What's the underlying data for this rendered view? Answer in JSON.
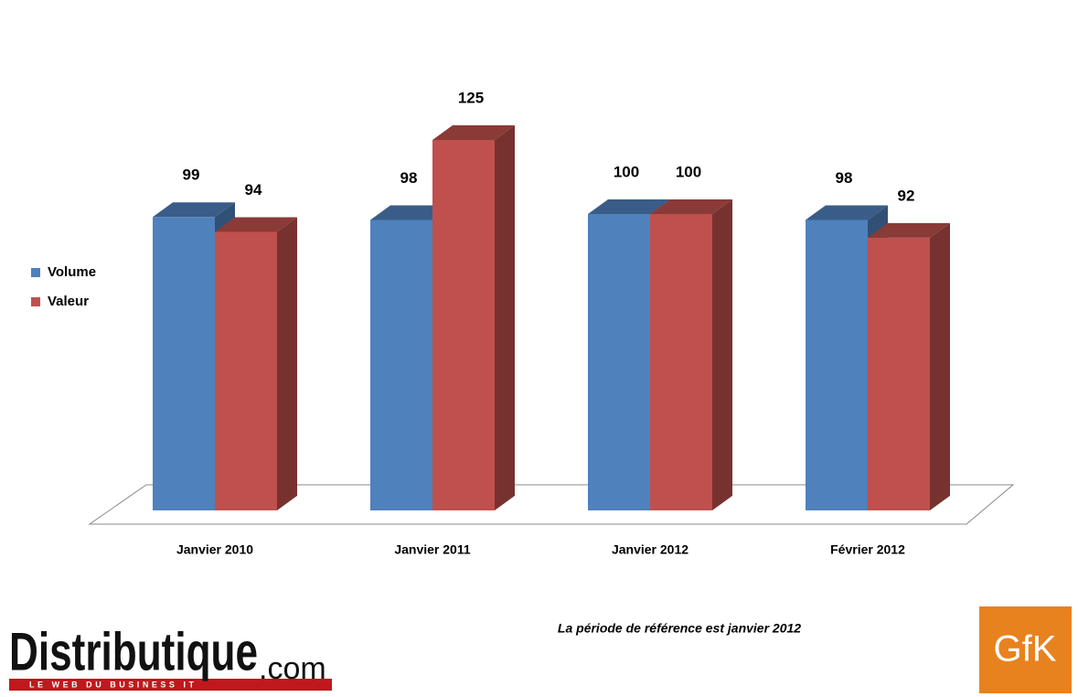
{
  "chart_data": {
    "type": "bar3d",
    "categories": [
      "Janvier 2010",
      "Janvier 2011",
      "Janvier 2012",
      "Février 2012"
    ],
    "series": [
      {
        "name": "Volume",
        "color": "#4f81bd",
        "values": [
          99,
          98,
          100,
          98
        ]
      },
      {
        "name": "Valeur",
        "color": "#c0504d",
        "values": [
          94,
          125,
          100,
          92
        ]
      }
    ],
    "legend": "left",
    "note": "La période de référence est janvier 2012",
    "logo_left": "Distributique",
    "logo_left_suffix": ".com",
    "logo_left_tagline": "LE WEB DU BUSINESS IT",
    "logo_right": "GfK"
  }
}
